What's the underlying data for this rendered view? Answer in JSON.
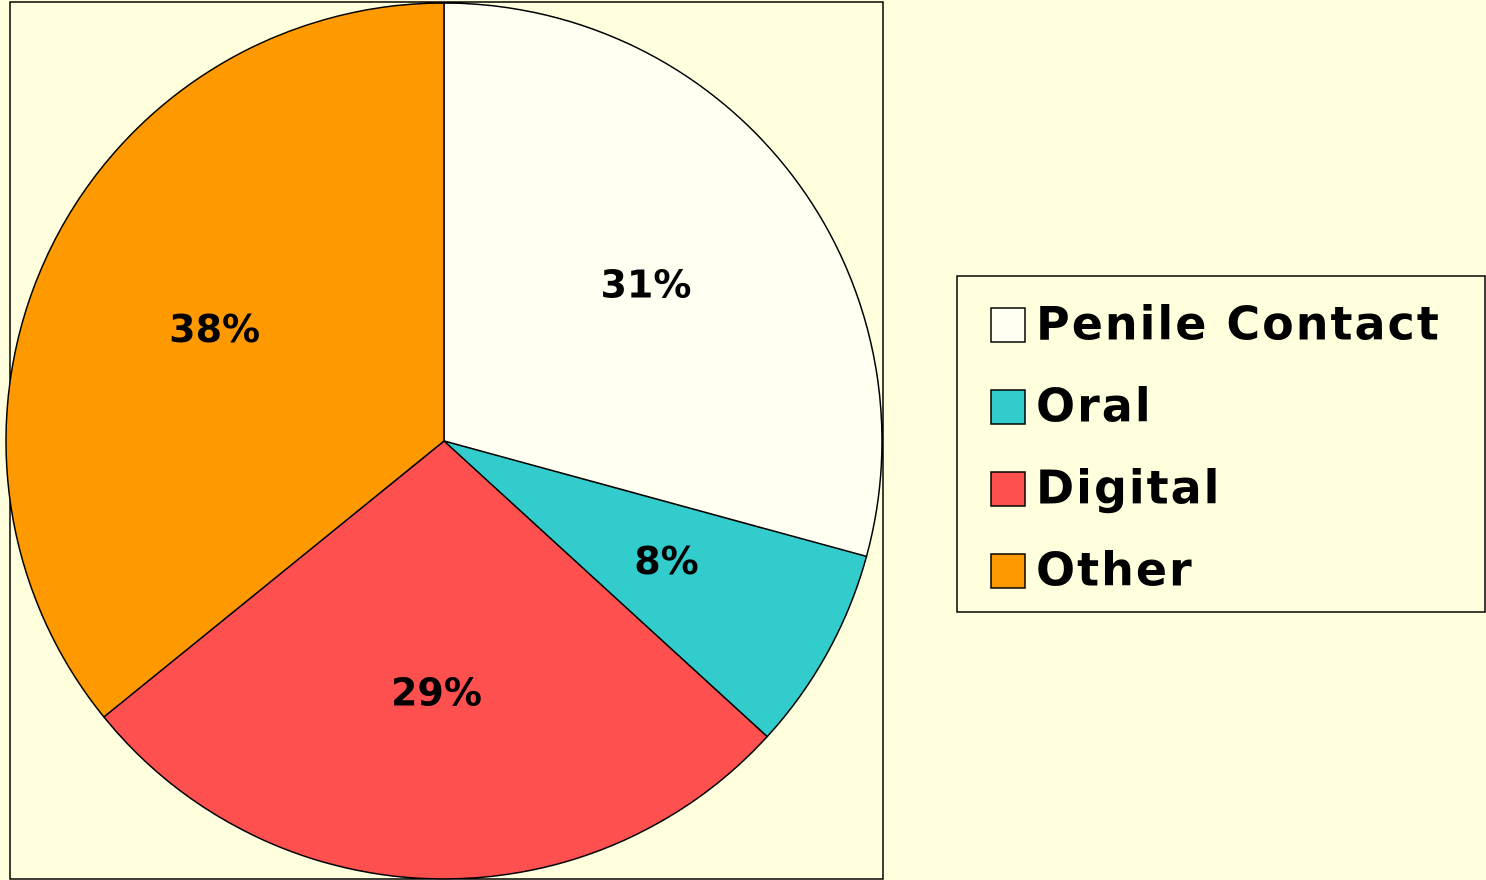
{
  "chart_data": {
    "type": "pie",
    "categories": [
      "Penile Contact",
      "Oral",
      "Digital",
      "Other"
    ],
    "values": [
      31,
      8,
      29,
      38
    ],
    "value_labels": [
      "31%",
      "8%",
      "29%",
      "38%"
    ],
    "colors": [
      "#fffff2",
      "#33cccc",
      "#ff5050",
      "#ff9900"
    ],
    "legend": "right"
  }
}
